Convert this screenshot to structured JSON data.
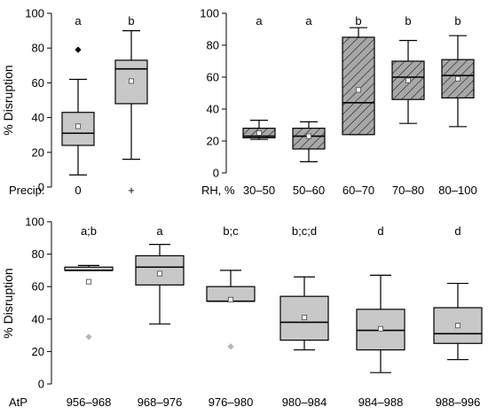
{
  "chart_data": [
    {
      "type": "box",
      "ylabel": "% Disruption",
      "ylim": [
        0,
        100
      ],
      "yticks": [
        0,
        20,
        40,
        60,
        80,
        100
      ],
      "group_label": "Precip.",
      "box_color": "#c8c8c8",
      "hatched": false,
      "categories": [
        {
          "label": "0",
          "letter": "a",
          "min": 7,
          "q1": 24,
          "median": 31,
          "q3": 43,
          "max": 62,
          "mean": 35,
          "outliers": [
            79
          ]
        },
        {
          "label": "+",
          "letter": "b",
          "min": 16,
          "q1": 48,
          "median": 68,
          "q3": 73,
          "max": 90,
          "mean": 61,
          "outliers": []
        }
      ]
    },
    {
      "type": "box",
      "ylabel": "",
      "ylim": [
        0,
        100
      ],
      "yticks": [
        0,
        20,
        40,
        60,
        80,
        100
      ],
      "group_label": "RH, %",
      "box_color": "#a8a8a8",
      "hatched": true,
      "categories": [
        {
          "label": "30–50",
          "letter": "a",
          "min": 21,
          "q1": 22,
          "median": 23,
          "q3": 28,
          "max": 33,
          "mean": 25,
          "outliers": []
        },
        {
          "label": "50–60",
          "letter": "a",
          "min": 7,
          "q1": 15,
          "median": 23,
          "q3": 28,
          "max": 32,
          "mean": 23,
          "outliers": []
        },
        {
          "label": "60–70",
          "letter": "b",
          "min": 24,
          "q1": 24,
          "median": 44,
          "q3": 85,
          "max": 91,
          "mean": 52,
          "outliers": []
        },
        {
          "label": "70–80",
          "letter": "b",
          "min": 31,
          "q1": 46,
          "median": 60,
          "q3": 70,
          "max": 83,
          "mean": 58,
          "outliers": []
        },
        {
          "label": "80–100",
          "letter": "b",
          "min": 29,
          "q1": 47,
          "median": 61,
          "q3": 71,
          "max": 86,
          "mean": 59,
          "outliers": []
        }
      ]
    },
    {
      "type": "box",
      "ylabel": "% Disruption",
      "ylim": [
        0,
        100
      ],
      "yticks": [
        0,
        20,
        40,
        60,
        80,
        100
      ],
      "group_label": "AtP",
      "box_color": "#c8c8c8",
      "hatched": false,
      "categories": [
        {
          "label": "956–968",
          "letter": "a;b",
          "min": 70,
          "q1": 70,
          "median": 70,
          "q3": 72,
          "max": 73,
          "mean": 63,
          "outliers": [
            29
          ]
        },
        {
          "label": "968–976",
          "letter": "a",
          "min": 37,
          "q1": 61,
          "median": 72,
          "q3": 79,
          "max": 86,
          "mean": 68,
          "outliers": []
        },
        {
          "label": "976–980",
          "letter": "b;c",
          "min": 51,
          "q1": 51,
          "median": 51,
          "q3": 60,
          "max": 70,
          "mean": 52,
          "outliers": [
            23
          ]
        },
        {
          "label": "980–984",
          "letter": "b;c;d",
          "min": 21,
          "q1": 27,
          "median": 38,
          "q3": 54,
          "max": 66,
          "mean": 41,
          "outliers": []
        },
        {
          "label": "984–988",
          "letter": "d",
          "min": 7,
          "q1": 21,
          "median": 33,
          "q3": 46,
          "max": 67,
          "mean": 34,
          "outliers": []
        },
        {
          "label": "988–996",
          "letter": "d",
          "min": 15,
          "q1": 25,
          "median": 31,
          "q3": 47,
          "max": 62,
          "mean": 36,
          "outliers": []
        }
      ]
    }
  ]
}
